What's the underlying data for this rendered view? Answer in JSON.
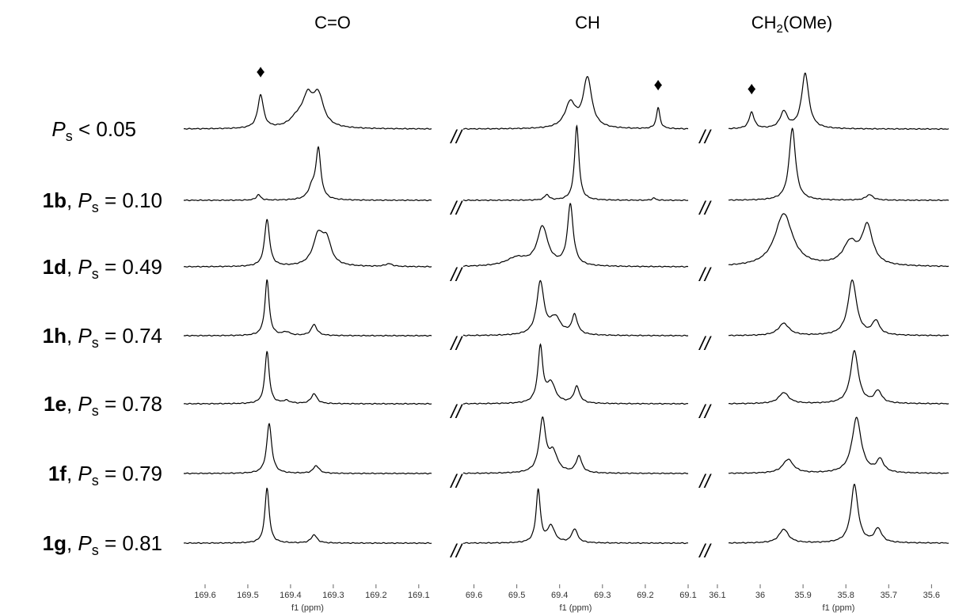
{
  "row_labels": [
    {
      "var": "P",
      "sub": "s",
      "rel": " < 0.05"
    },
    {
      "compound": "1b",
      "sep": ", ",
      "var": "P",
      "sub": "s",
      "rel": " = 0.10"
    },
    {
      "compound": "1d",
      "sep": ", ",
      "var": "P",
      "sub": "s",
      "rel": " = 0.49"
    },
    {
      "compound": "1h",
      "sep": ", ",
      "var": "P",
      "sub": "s",
      "rel": " = 0.74"
    },
    {
      "compound": "1e",
      "sep": ", ",
      "var": "P",
      "sub": "s",
      "rel": " = 0.78"
    },
    {
      "compound": "1f",
      "sep": ", ",
      "var": "P",
      "sub": "s",
      "rel": " = 0.79"
    },
    {
      "compound": "1g",
      "sep": ", ",
      "var": "P",
      "sub": "s",
      "rel": " = 0.81"
    }
  ],
  "break_mark": "//",
  "panels": [
    {
      "header": [
        "C=O"
      ],
      "marker": {
        "symbol": "♦",
        "position": 169.47
      },
      "xlim": [
        169.65,
        169.07
      ],
      "xticks": [
        169.6,
        169.5,
        169.4,
        169.3,
        169.2,
        169.1
      ],
      "axis_label": "f1 (ppm)",
      "spectra": [
        [
          [
            169.47,
            0.6,
            0.008
          ],
          [
            169.36,
            0.5,
            0.015
          ],
          [
            169.335,
            0.55,
            0.015
          ],
          [
            169.385,
            0.15,
            0.02
          ]
        ],
        [
          [
            169.475,
            0.1,
            0.006
          ],
          [
            169.335,
            0.9,
            0.007
          ],
          [
            169.35,
            0.2,
            0.01
          ]
        ],
        [
          [
            169.455,
            0.85,
            0.007
          ],
          [
            169.335,
            0.55,
            0.015
          ],
          [
            169.315,
            0.4,
            0.012
          ],
          [
            169.17,
            0.05,
            0.01
          ]
        ],
        [
          [
            169.455,
            1.0,
            0.006
          ],
          [
            169.345,
            0.2,
            0.008
          ],
          [
            169.41,
            0.06,
            0.01
          ]
        ],
        [
          [
            169.455,
            0.95,
            0.006
          ],
          [
            169.345,
            0.18,
            0.008
          ],
          [
            169.41,
            0.05,
            0.01
          ]
        ],
        [
          [
            169.45,
            0.9,
            0.007
          ],
          [
            169.34,
            0.14,
            0.008
          ]
        ],
        [
          [
            169.455,
            1.0,
            0.006
          ],
          [
            169.345,
            0.15,
            0.008
          ]
        ]
      ]
    },
    {
      "header": [
        "CH"
      ],
      "marker": {
        "symbol": "♦",
        "position": 69.17
      },
      "xlim": [
        69.625,
        69.1
      ],
      "xticks": [
        69.6,
        69.5,
        69.4,
        69.3,
        69.2,
        69.1
      ],
      "axis_label": "f1 (ppm)",
      "spectra": [
        [
          [
            69.335,
            0.9,
            0.012
          ],
          [
            69.375,
            0.45,
            0.015
          ],
          [
            69.17,
            0.38,
            0.005
          ]
        ],
        [
          [
            69.36,
            1.35,
            0.006
          ],
          [
            69.43,
            0.1,
            0.006
          ],
          [
            69.18,
            0.04,
            0.005
          ]
        ],
        [
          [
            69.375,
            1.1,
            0.008
          ],
          [
            69.44,
            0.7,
            0.015
          ],
          [
            69.5,
            0.15,
            0.03
          ]
        ],
        [
          [
            69.445,
            0.95,
            0.01
          ],
          [
            69.41,
            0.3,
            0.015
          ],
          [
            69.365,
            0.35,
            0.008
          ]
        ],
        [
          [
            69.445,
            1.0,
            0.007
          ],
          [
            69.42,
            0.35,
            0.012
          ],
          [
            69.36,
            0.3,
            0.008
          ]
        ],
        [
          [
            69.44,
            0.95,
            0.009
          ],
          [
            69.415,
            0.35,
            0.012
          ],
          [
            69.355,
            0.3,
            0.008
          ]
        ],
        [
          [
            69.45,
            0.95,
            0.006
          ],
          [
            69.42,
            0.3,
            0.01
          ],
          [
            69.365,
            0.25,
            0.008
          ]
        ]
      ]
    },
    {
      "header": [
        "CH",
        "2",
        "(OMe)"
      ],
      "marker": {
        "symbol": "♦",
        "position": 36.02
      },
      "xlim": [
        36.074,
        35.56
      ],
      "xticks": [
        36.1,
        36.0,
        35.9,
        35.8,
        35.7,
        35.6
      ],
      "axis_label": "f1 (ppm)",
      "spectra": [
        [
          [
            35.895,
            1.0,
            0.01
          ],
          [
            35.945,
            0.3,
            0.01
          ],
          [
            36.02,
            0.3,
            0.007
          ]
        ],
        [
          [
            35.925,
            1.3,
            0.009
          ],
          [
            35.745,
            0.1,
            0.01
          ]
        ],
        [
          [
            35.945,
            0.95,
            0.025
          ],
          [
            35.75,
            0.7,
            0.015
          ],
          [
            35.79,
            0.4,
            0.02
          ]
        ],
        [
          [
            35.785,
            1.0,
            0.012
          ],
          [
            35.945,
            0.22,
            0.015
          ],
          [
            35.73,
            0.25,
            0.01
          ]
        ],
        [
          [
            35.78,
            0.95,
            0.011
          ],
          [
            35.945,
            0.2,
            0.014
          ],
          [
            35.725,
            0.22,
            0.01
          ]
        ],
        [
          [
            35.775,
            1.0,
            0.013
          ],
          [
            35.935,
            0.25,
            0.015
          ],
          [
            35.72,
            0.23,
            0.01
          ]
        ],
        [
          [
            35.78,
            1.05,
            0.01
          ],
          [
            35.945,
            0.25,
            0.013
          ],
          [
            35.725,
            0.25,
            0.01
          ]
        ]
      ]
    }
  ]
}
